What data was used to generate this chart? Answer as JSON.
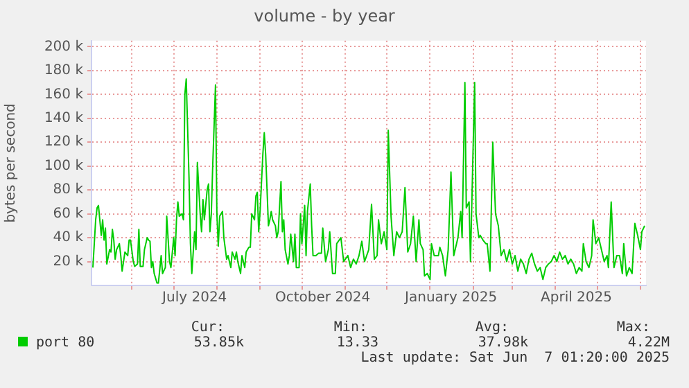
{
  "chart_data": {
    "type": "line",
    "title": "volume - by year",
    "ylabel": "bytes per second",
    "x": [
      "2024-05-04",
      "2024-05-06",
      "2024-05-07",
      "2024-05-08",
      "2024-05-10",
      "2024-05-11",
      "2024-05-12",
      "2024-05-13",
      "2024-05-14",
      "2024-05-16",
      "2024-05-17",
      "2024-05-18",
      "2024-05-19",
      "2024-05-20",
      "2024-05-21",
      "2024-05-23",
      "2024-05-24",
      "2024-05-25",
      "2024-05-26",
      "2024-05-27",
      "2024-05-29",
      "2024-05-30",
      "2024-05-31",
      "2024-06-02",
      "2024-06-03",
      "2024-06-05",
      "2024-06-06",
      "2024-06-07",
      "2024-06-09",
      "2024-06-10",
      "2024-06-12",
      "2024-06-13",
      "2024-06-14",
      "2024-06-15",
      "2024-06-16",
      "2024-06-17",
      "2024-06-19",
      "2024-06-20",
      "2024-06-22",
      "2024-06-23",
      "2024-06-25",
      "2024-06-26",
      "2024-06-28",
      "2024-06-29",
      "2024-07-01",
      "2024-07-02",
      "2024-07-03",
      "2024-07-04",
      "2024-07-05",
      "2024-07-07",
      "2024-07-08",
      "2024-07-09",
      "2024-07-10",
      "2024-07-12",
      "2024-07-13",
      "2024-07-14",
      "2024-07-16",
      "2024-07-17",
      "2024-07-18",
      "2024-07-20",
      "2024-07-21",
      "2024-07-22",
      "2024-07-23",
      "2024-07-25",
      "2024-07-26",
      "2024-07-27",
      "2024-07-28",
      "2024-07-29",
      "2024-07-31",
      "2024-08-01",
      "2024-08-02",
      "2024-08-03",
      "2024-08-05",
      "2024-08-06",
      "2024-08-08",
      "2024-08-09",
      "2024-08-11",
      "2024-08-12",
      "2024-08-14",
      "2024-08-15",
      "2024-08-16",
      "2024-08-18",
      "2024-08-19",
      "2024-08-21",
      "2024-08-22",
      "2024-08-24",
      "2024-08-25",
      "2024-08-26",
      "2024-08-28",
      "2024-08-29",
      "2024-08-30",
      "2024-08-31",
      "2024-09-01",
      "2024-09-03",
      "2024-09-04",
      "2024-09-05",
      "2024-09-07",
      "2024-09-08",
      "2024-09-09",
      "2024-09-10",
      "2024-09-12",
      "2024-09-13",
      "2024-09-14",
      "2024-09-16",
      "2024-09-17",
      "2024-09-18",
      "2024-09-19",
      "2024-09-21",
      "2024-09-22",
      "2024-09-23",
      "2024-09-25",
      "2024-09-26",
      "2024-09-27",
      "2024-09-29",
      "2024-09-30",
      "2024-10-01",
      "2024-10-03",
      "2024-10-04",
      "2024-10-05",
      "2024-10-07",
      "2024-10-08",
      "2024-10-09",
      "2024-10-11",
      "2024-10-13",
      "2024-10-15",
      "2024-10-16",
      "2024-10-18",
      "2024-10-20",
      "2024-10-21",
      "2024-10-23",
      "2024-10-25",
      "2024-10-26",
      "2024-10-29",
      "2024-10-31",
      "2024-11-03",
      "2024-11-05",
      "2024-11-07",
      "2024-11-09",
      "2024-11-11",
      "2024-11-13",
      "2024-11-15",
      "2024-11-18",
      "2024-11-20",
      "2024-11-22",
      "2024-11-24",
      "2024-11-25",
      "2024-11-27",
      "2024-11-29",
      "2024-12-01",
      "2024-12-02",
      "2024-12-04",
      "2024-12-06",
      "2024-12-08",
      "2024-12-10",
      "2024-12-12",
      "2024-12-14",
      "2024-12-16",
      "2024-12-18",
      "2024-12-20",
      "2024-12-22",
      "2024-12-24",
      "2024-12-25",
      "2024-12-27",
      "2024-12-28",
      "2024-12-30",
      "2025-01-01",
      "2025-01-02",
      "2025-01-04",
      "2025-01-07",
      "2025-01-08",
      "2025-01-10",
      "2025-01-12",
      "2025-01-14",
      "2025-01-16",
      "2025-01-18",
      "2025-01-20",
      "2025-01-21",
      "2025-01-23",
      "2025-01-24",
      "2025-01-26",
      "2025-01-27",
      "2025-01-29",
      "2025-01-30",
      "2025-02-02",
      "2025-02-03",
      "2025-02-05",
      "2025-02-06",
      "2025-02-08",
      "2025-02-10",
      "2025-02-11",
      "2025-02-13",
      "2025-02-15",
      "2025-02-17",
      "2025-02-19",
      "2025-02-21",
      "2025-02-23",
      "2025-02-25",
      "2025-02-27",
      "2025-03-01",
      "2025-03-03",
      "2025-03-05",
      "2025-03-07",
      "2025-03-09",
      "2025-03-11",
      "2025-03-13",
      "2025-03-15",
      "2025-03-17",
      "2025-03-19",
      "2025-03-21",
      "2025-03-23",
      "2025-03-25",
      "2025-03-27",
      "2025-03-29",
      "2025-03-31",
      "2025-04-02",
      "2025-04-04",
      "2025-04-06",
      "2025-04-08",
      "2025-04-10",
      "2025-04-12",
      "2025-04-14",
      "2025-04-16",
      "2025-04-18",
      "2025-04-20",
      "2025-04-21",
      "2025-04-23",
      "2025-04-25",
      "2025-04-27",
      "2025-04-28",
      "2025-04-30",
      "2025-05-02",
      "2025-05-04",
      "2025-05-06",
      "2025-05-08",
      "2025-05-09",
      "2025-05-11",
      "2025-05-13",
      "2025-05-15",
      "2025-05-17",
      "2025-05-19",
      "2025-05-20",
      "2025-05-22",
      "2025-05-24",
      "2025-05-26",
      "2025-05-28",
      "2025-05-30",
      "2025-06-01",
      "2025-06-02",
      "2025-06-04"
    ],
    "series": [
      {
        "name": "port 80",
        "color": "#00cc00",
        "values": [
          15000,
          55000,
          65000,
          67000,
          42000,
          55000,
          38000,
          48000,
          18000,
          30000,
          28000,
          47000,
          38000,
          22000,
          30000,
          35000,
          25000,
          12000,
          20000,
          28000,
          25000,
          38000,
          38000,
          20000,
          16000,
          18000,
          47000,
          16000,
          16000,
          30000,
          40000,
          38000,
          37000,
          15000,
          20000,
          10000,
          2000,
          2000,
          25000,
          10000,
          15000,
          58000,
          20000,
          15000,
          40000,
          25000,
          55000,
          70000,
          58000,
          60000,
          55000,
          160000,
          173000,
          90000,
          35000,
          10000,
          45000,
          30000,
          103000,
          60000,
          45000,
          72000,
          55000,
          80000,
          85000,
          45000,
          60000,
          100000,
          168000,
          60000,
          33000,
          58000,
          62000,
          40000,
          22000,
          25000,
          15000,
          28000,
          22000,
          28000,
          20000,
          10000,
          25000,
          15000,
          28000,
          32000,
          32000,
          60000,
          55000,
          75000,
          78000,
          45000,
          62000,
          110000,
          128000,
          110000,
          50000,
          55000,
          62000,
          55000,
          50000,
          40000,
          45000,
          87000,
          45000,
          55000,
          30000,
          18000,
          25000,
          43000,
          20000,
          43000,
          15000,
          15000,
          60000,
          35000,
          67000,
          25000,
          62000,
          85000,
          50000,
          25000,
          25000,
          27000,
          27000,
          48000,
          20000,
          30000,
          45000,
          10000,
          10000,
          35000,
          40000,
          20000,
          25000,
          15000,
          22000,
          18000,
          25000,
          37000,
          20000,
          30000,
          68000,
          22000,
          25000,
          55000,
          35000,
          45000,
          30000,
          130000,
          58000,
          25000,
          45000,
          40000,
          45000,
          82000,
          28000,
          35000,
          58000,
          20000,
          55000,
          35000,
          30000,
          8000,
          10000,
          5000,
          35000,
          25000,
          25000,
          32000,
          25000,
          8000,
          30000,
          95000,
          25000,
          35000,
          40000,
          62000,
          40000,
          170000,
          65000,
          70000,
          20000,
          170000,
          60000,
          40000,
          42000,
          38000,
          35000,
          35000,
          12000,
          120000,
          60000,
          50000,
          25000,
          30000,
          20000,
          30000,
          18000,
          25000,
          12000,
          22000,
          18000,
          10000,
          22000,
          27000,
          18000,
          12000,
          15000,
          5000,
          15000,
          18000,
          20000,
          25000,
          20000,
          28000,
          22000,
          25000,
          18000,
          22000,
          18000,
          10000,
          15000,
          12000,
          35000,
          20000,
          15000,
          25000,
          55000,
          35000,
          40000,
          30000,
          20000,
          25000,
          15000,
          70000,
          15000,
          25000,
          25000,
          10000,
          35000,
          8000,
          15000,
          10000,
          52000,
          42000,
          30000,
          45000,
          50000
        ]
      }
    ],
    "xlim": [
      "2024-05-03",
      "2025-06-05"
    ],
    "xticks": [
      {
        "value": "2024-06-01",
        "label": null
      },
      {
        "value": "2024-07-01",
        "label": null
      },
      {
        "value": "2024-07-16",
        "label": "July 2024"
      },
      {
        "value": "2024-08-01",
        "label": null
      },
      {
        "value": "2024-09-01",
        "label": null
      },
      {
        "value": "2024-10-01",
        "label": null
      },
      {
        "value": "2024-10-16",
        "label": "October 2024"
      },
      {
        "value": "2024-11-01",
        "label": null
      },
      {
        "value": "2024-12-01",
        "label": null
      },
      {
        "value": "2025-01-01",
        "label": null
      },
      {
        "value": "2025-01-16",
        "label": "January 2025"
      },
      {
        "value": "2025-02-01",
        "label": null
      },
      {
        "value": "2025-03-01",
        "label": null
      },
      {
        "value": "2025-04-01",
        "label": null
      },
      {
        "value": "2025-04-16",
        "label": "April 2025"
      },
      {
        "value": "2025-05-01",
        "label": null
      },
      {
        "value": "2025-06-01",
        "label": null
      }
    ],
    "ylim": [
      0,
      205000
    ],
    "yticks": [
      {
        "value": 20000,
        "label": "20 k"
      },
      {
        "value": 40000,
        "label": "40 k"
      },
      {
        "value": 60000,
        "label": "60 k"
      },
      {
        "value": 80000,
        "label": "80 k"
      },
      {
        "value": 100000,
        "label": "100 k"
      },
      {
        "value": 120000,
        "label": "120 k"
      },
      {
        "value": 140000,
        "label": "140 k"
      },
      {
        "value": 160000,
        "label": "160 k"
      },
      {
        "value": 180000,
        "label": "180 k"
      },
      {
        "value": 200000,
        "label": "200 k"
      }
    ],
    "grid": true,
    "legend": "bottom left",
    "annotations": [
      "Cur:",
      "Min:",
      "Avg:",
      "Max:",
      "53.85k",
      "13.33",
      "37.98k",
      "4.22M",
      "Last update: Sat Jun  7 01:20:00 2025"
    ]
  }
}
